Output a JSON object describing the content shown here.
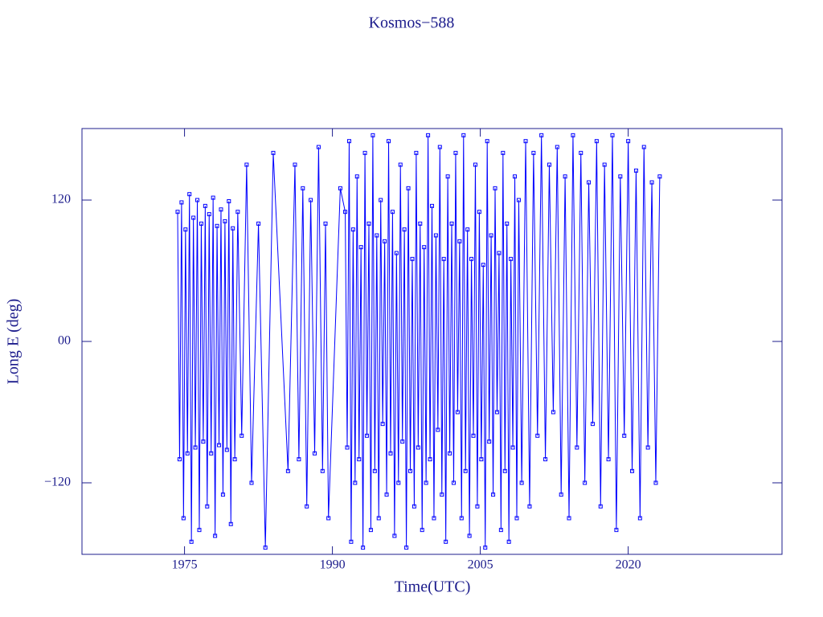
{
  "chart_data": {
    "type": "line",
    "title": "Kosmos−588",
    "xlabel": "Time(UTC)",
    "ylabel": "Long E (deg)",
    "xlim": [
      1964.6,
      2035.6
    ],
    "xticks": [
      1975,
      1990,
      2005,
      2020
    ],
    "ylim": [
      -180.7,
      180.7
    ],
    "yticks": [
      {
        "value": -120,
        "label": "−120"
      },
      {
        "value": 0,
        "label": "00"
      },
      120
    ],
    "x": [
      1974.3,
      1974.5,
      1974.7,
      1974.9,
      1975.1,
      1975.3,
      1975.5,
      1975.7,
      1975.9,
      1976.1,
      1976.3,
      1976.5,
      1976.7,
      1976.9,
      1977.1,
      1977.3,
      1977.5,
      1977.7,
      1977.9,
      1978.1,
      1978.3,
      1978.5,
      1978.7,
      1978.9,
      1979.1,
      1979.3,
      1979.5,
      1979.7,
      1979.9,
      1980.1,
      1980.4,
      1980.8,
      1981.3,
      1981.8,
      1982.5,
      1983.2,
      1984.0,
      1985.5,
      1986.2,
      1986.6,
      1987.0,
      1987.4,
      1987.8,
      1988.2,
      1988.6,
      1989.0,
      1989.3,
      1989.6,
      1990.8,
      1991.3,
      1991.5,
      1991.7,
      1991.9,
      1992.1,
      1992.3,
      1992.5,
      1992.7,
      1992.9,
      1993.1,
      1993.3,
      1993.5,
      1993.7,
      1993.9,
      1994.1,
      1994.3,
      1994.5,
      1994.7,
      1994.9,
      1995.1,
      1995.3,
      1995.5,
      1995.7,
      1995.9,
      1996.1,
      1996.3,
      1996.5,
      1996.7,
      1996.9,
      1997.1,
      1997.3,
      1997.5,
      1997.7,
      1997.9,
      1998.1,
      1998.3,
      1998.5,
      1998.7,
      1998.9,
      1999.1,
      1999.3,
      1999.5,
      1999.7,
      1999.9,
      2000.1,
      2000.3,
      2000.5,
      2000.7,
      2000.9,
      2001.1,
      2001.3,
      2001.5,
      2001.7,
      2001.9,
      2002.1,
      2002.3,
      2002.5,
      2002.7,
      2002.9,
      2003.1,
      2003.3,
      2003.5,
      2003.7,
      2003.9,
      2004.1,
      2004.3,
      2004.5,
      2004.7,
      2004.9,
      2005.1,
      2005.3,
      2005.5,
      2005.7,
      2005.9,
      2006.1,
      2006.3,
      2006.5,
      2006.7,
      2006.9,
      2007.1,
      2007.3,
      2007.5,
      2007.7,
      2007.9,
      2008.1,
      2008.3,
      2008.5,
      2008.7,
      2008.9,
      2009.2,
      2009.6,
      2010.0,
      2010.4,
      2010.8,
      2011.2,
      2011.6,
      2012.0,
      2012.4,
      2012.8,
      2013.2,
      2013.6,
      2014.0,
      2014.4,
      2014.8,
      2015.2,
      2015.6,
      2016.0,
      2016.4,
      2016.8,
      2017.2,
      2017.6,
      2018.0,
      2018.4,
      2018.8,
      2019.2,
      2019.6,
      2020.0,
      2020.4,
      2020.8,
      2021.2,
      2021.6,
      2022.0,
      2022.4,
      2022.8,
      2023.2
    ],
    "series": [
      {
        "color": "#0000ff",
        "values": [
          110,
          -100,
          118,
          -150,
          95,
          -95,
          125,
          -170,
          105,
          -90,
          120,
          -160,
          100,
          -85,
          115,
          -140,
          108,
          -95,
          122,
          -165,
          98,
          -88,
          112,
          -130,
          102,
          -92,
          119,
          -155,
          96,
          -100,
          110,
          -80,
          150,
          -120,
          100,
          -175,
          160,
          -110,
          150,
          -100,
          130,
          -140,
          120,
          -95,
          165,
          -110,
          100,
          -150,
          130,
          110,
          -90,
          170,
          -170,
          95,
          -120,
          140,
          -100,
          80,
          -175,
          160,
          -80,
          100,
          -160,
          175,
          -110,
          90,
          -150,
          120,
          -70,
          85,
          -130,
          170,
          -95,
          110,
          -165,
          75,
          -120,
          150,
          -85,
          95,
          -175,
          130,
          -110,
          70,
          -140,
          160,
          -90,
          100,
          -160,
          80,
          -120,
          175,
          -100,
          115,
          -150,
          90,
          -75,
          165,
          -130,
          70,
          -170,
          140,
          -95,
          100,
          -120,
          160,
          -60,
          85,
          -150,
          175,
          -110,
          95,
          -165,
          70,
          -80,
          150,
          -140,
          110,
          -100,
          65,
          -175,
          170,
          -85,
          90,
          -130,
          130,
          -60,
          75,
          -160,
          160,
          -110,
          100,
          -170,
          70,
          -90,
          140,
          -150,
          120,
          -120,
          170,
          -140,
          160,
          -80,
          175,
          -100,
          150,
          -60,
          165,
          -130,
          140,
          -150,
          175,
          -90,
          160,
          -120,
          135,
          -70,
          170,
          -140,
          150,
          -100,
          175,
          -160,
          140,
          -80,
          170,
          -110,
          145,
          -150,
          165,
          -90,
          135,
          -120,
          140
        ]
      }
    ]
  }
}
